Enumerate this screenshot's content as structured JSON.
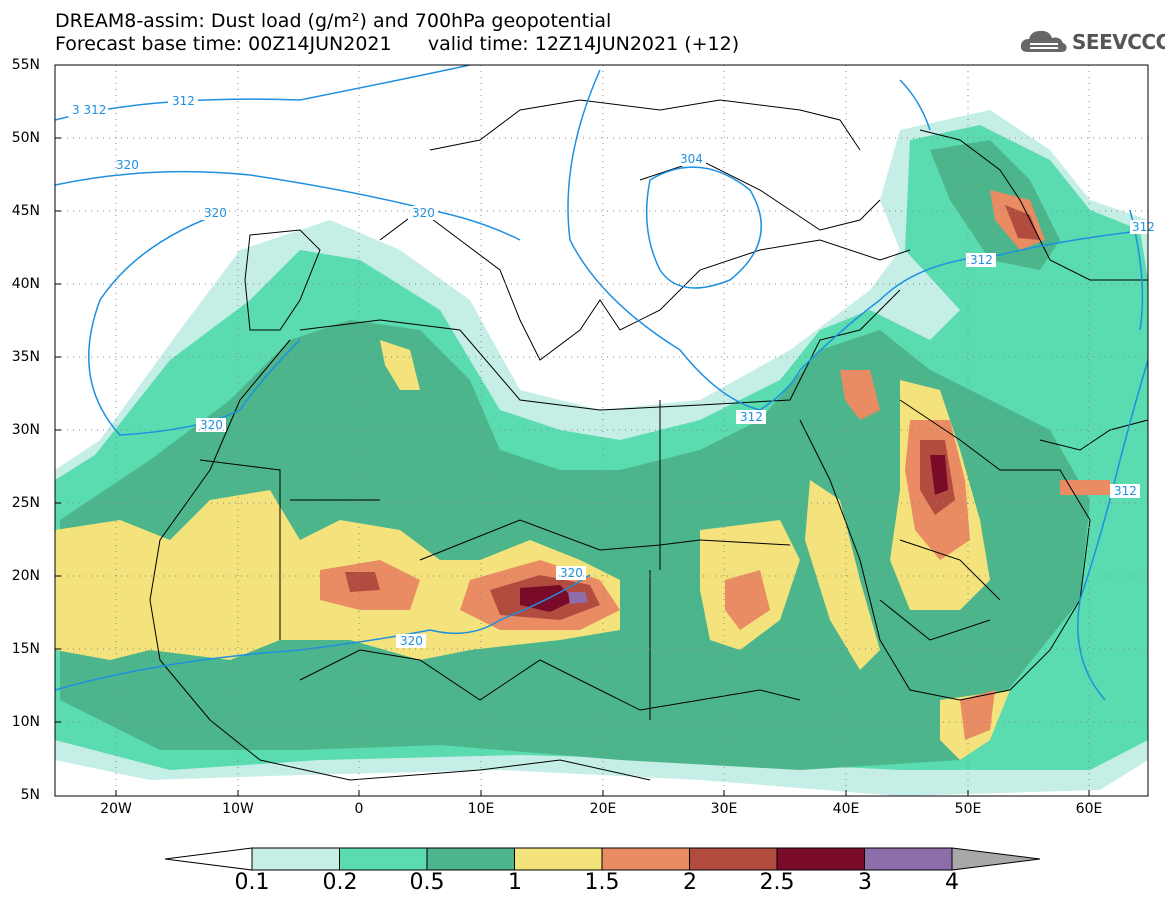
{
  "title": {
    "line1": "DREAM8-assim: Dust load (g/m²) and 700hPa geopotential",
    "line2": "Forecast base time: 00Z14JUN2021      valid time: 12Z14JUN2021 (+12)"
  },
  "logo": {
    "text": "SEEVCCC",
    "icon": "cloud-icon"
  },
  "axes": {
    "lat_labels": [
      "55N",
      "50N",
      "45N",
      "40N",
      "35N",
      "30N",
      "25N",
      "20N",
      "15N",
      "10N",
      "5N"
    ],
    "lon_labels": [
      "20W",
      "10W",
      "0",
      "10E",
      "20E",
      "30E",
      "40E",
      "50E",
      "60E"
    ]
  },
  "contours": [
    "3 312",
    "312",
    "320",
    "320",
    "320",
    "320",
    "320",
    "320",
    "304",
    "312",
    "312",
    "312",
    "312"
  ],
  "colorbar": {
    "labels": [
      "0.1",
      "0.2",
      "0.5",
      "1",
      "1.5",
      "2",
      "2.5",
      "3",
      "4"
    ],
    "colors": [
      "#c4eee6",
      "#5adbb0",
      "#4db58b",
      "#f4e27c",
      "#ea8c63",
      "#b24c3e",
      "#7a0b28",
      "#8d6eaa",
      "#a8a8a8"
    ]
  }
}
